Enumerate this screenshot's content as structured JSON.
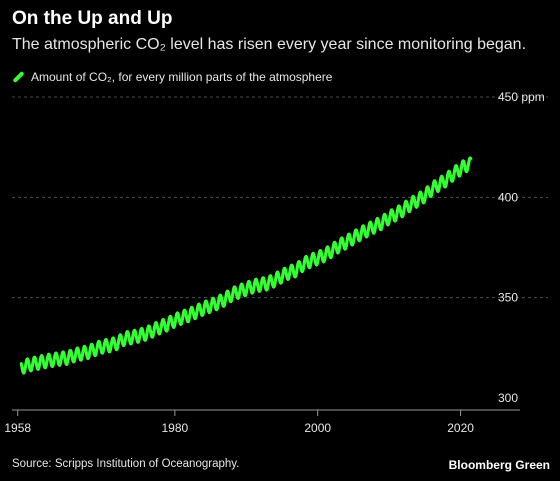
{
  "header": {
    "title": "On the Up and Up",
    "subtitle": "The atmospheric CO₂ level has risen every year since monitoring began."
  },
  "legend": {
    "label": "Amount of CO₂, for every million parts of the atmosphere"
  },
  "footer": {
    "source": "Source: Scripps Institution of Oceanography.",
    "brand": "Bloomberg Green"
  },
  "colors": {
    "series": "#33ff33",
    "background": "#000000",
    "grid": "#4d4d4d",
    "axis": "#999999"
  },
  "chart_data": {
    "type": "line",
    "title": "On the Up and Up",
    "subtitle": "The atmospheric CO₂ level has risen every year since monitoring began.",
    "xlabel": "",
    "ylabel": "",
    "xlim": [
      1957.2,
      2024.4
    ],
    "ylim": [
      300,
      450
    ],
    "x_ticks": [
      1958,
      1980,
      2000,
      2020
    ],
    "x_tick_labels": [
      "1958",
      "1980",
      "2000",
      "2020"
    ],
    "y_ticks": [
      300,
      350,
      400,
      450
    ],
    "y_tick_labels": [
      "300",
      "350",
      "400",
      "450 ppm"
    ],
    "grid": true,
    "legend_position": "top-left",
    "series": [
      {
        "name": "Amount of CO₂, for every million parts of the atmosphere",
        "x": [
          1958.5,
          1959.0,
          1960.0,
          1961.0,
          1962.0,
          1963.0,
          1964.0,
          1965.0,
          1966.0,
          1967.0,
          1968.0,
          1969.0,
          1970.0,
          1971.0,
          1972.0,
          1973.0,
          1974.0,
          1975.0,
          1976.0,
          1977.0,
          1978.0,
          1979.0,
          1980.0,
          1981.0,
          1982.0,
          1983.0,
          1984.0,
          1985.0,
          1986.0,
          1987.0,
          1988.0,
          1989.0,
          1990.0,
          1991.0,
          1992.0,
          1993.0,
          1994.0,
          1995.0,
          1996.0,
          1997.0,
          1998.0,
          1999.0,
          2000.0,
          2001.0,
          2002.0,
          2003.0,
          2004.0,
          2005.0,
          2006.0,
          2007.0,
          2008.0,
          2009.0,
          2010.0,
          2011.0,
          2012.0,
          2013.0,
          2014.0,
          2015.0,
          2016.0,
          2017.0,
          2018.0,
          2019.0,
          2020.0,
          2021.0
        ],
        "y": [
          315.2,
          315.9,
          316.9,
          317.6,
          318.4,
          319.0,
          319.6,
          320.0,
          321.4,
          322.2,
          323.0,
          324.6,
          325.7,
          326.3,
          327.5,
          329.7,
          330.2,
          331.1,
          332.1,
          333.8,
          335.4,
          336.8,
          338.7,
          340.1,
          341.4,
          343.0,
          344.6,
          346.0,
          347.4,
          349.2,
          351.6,
          353.1,
          354.4,
          355.7,
          356.5,
          357.1,
          358.8,
          360.8,
          362.6,
          363.7,
          366.7,
          368.4,
          369.7,
          371.3,
          373.5,
          375.9,
          377.7,
          379.8,
          381.9,
          383.8,
          385.6,
          387.4,
          389.9,
          391.7,
          393.9,
          396.5,
          398.6,
          400.8,
          404.2,
          406.5,
          408.7,
          411.7,
          414.2,
          416.4
        ]
      }
    ],
    "seasonal_amplitude_ppm": 3.2
  }
}
